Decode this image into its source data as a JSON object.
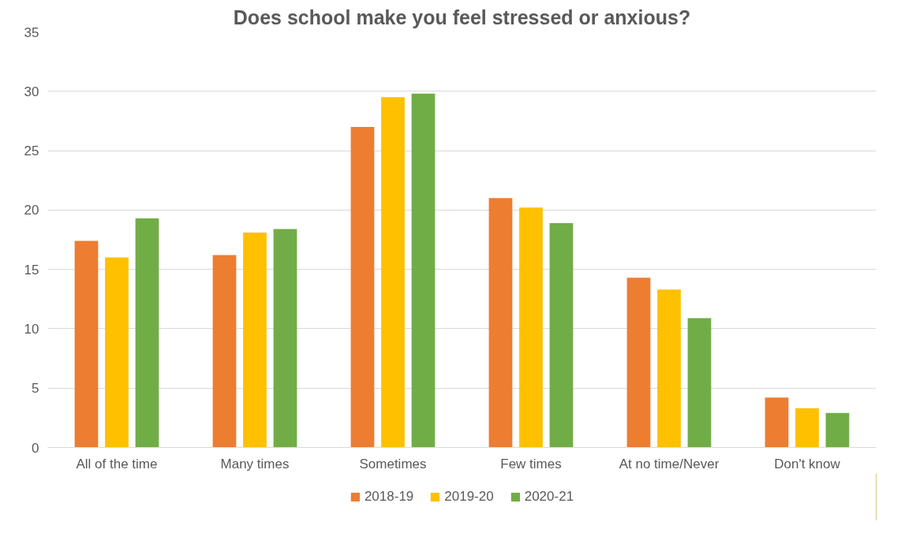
{
  "chart_data": {
    "type": "bar",
    "title": "Does school make you feel stressed or anxious?",
    "categories": [
      "All of the time",
      "Many times",
      "Sometimes",
      "Few times",
      "At no time/Never",
      "Don't know"
    ],
    "series": [
      {
        "name": "2018-19",
        "color": "#ed7d31",
        "values": [
          17.4,
          16.2,
          27.0,
          21.0,
          14.3,
          4.2
        ]
      },
      {
        "name": "2019-20",
        "color": "#ffc000",
        "values": [
          16.0,
          18.1,
          29.5,
          20.2,
          13.3,
          3.3
        ]
      },
      {
        "name": "2020-21",
        "color": "#70ad47",
        "values": [
          19.3,
          18.4,
          29.8,
          18.9,
          10.9,
          2.9
        ]
      }
    ],
    "ylim": [
      0,
      35
    ],
    "yticks": [
      0,
      5,
      10,
      15,
      20,
      25,
      30,
      35
    ],
    "grid": "y",
    "legend": "bottom"
  }
}
